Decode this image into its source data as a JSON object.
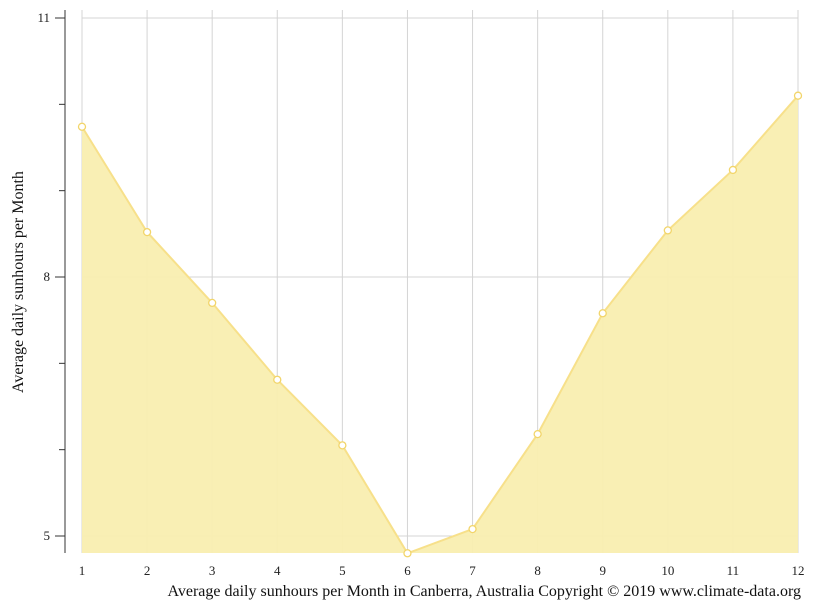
{
  "chart_data": {
    "type": "area",
    "x": [
      1,
      2,
      3,
      4,
      5,
      6,
      7,
      8,
      9,
      10,
      11,
      12
    ],
    "values": [
      9.74,
      8.52,
      7.7,
      6.81,
      6.05,
      4.8,
      5.08,
      6.18,
      7.58,
      8.54,
      9.24,
      10.1
    ],
    "xlim": [
      1,
      12
    ],
    "ylim": [
      4.8,
      11.1
    ],
    "yticks": [
      5,
      8,
      11
    ],
    "xticks": [
      1,
      2,
      3,
      4,
      5,
      6,
      7,
      8,
      9,
      10,
      11,
      12
    ],
    "ylabel": "Average daily sunhours per Month",
    "caption": "Average daily sunhours per Month in Canberra, Australia Copyright © 2019 www.climate-data.org",
    "grid": true,
    "fill_color": "#f9eeb0",
    "line_color": "#f7e08a",
    "marker_color": "#f2d56a",
    "grid_color": "#d4d4d4",
    "axis_color": "#333333"
  }
}
